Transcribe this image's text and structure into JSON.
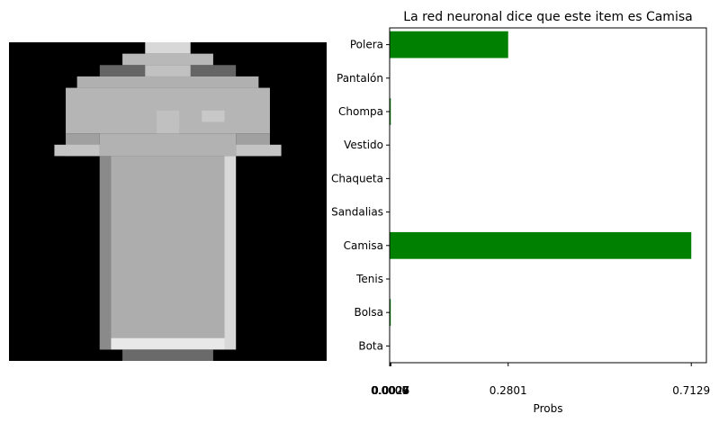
{
  "chart_data": {
    "type": "bar",
    "orientation": "horizontal",
    "title": "La red neuronal dice que este item es Camisa",
    "xlabel": "Probs",
    "ylabel": "",
    "categories": [
      "Polera",
      "Pantalón",
      "Chompa",
      "Vestido",
      "Chaqueta",
      "Sandalias",
      "Camisa",
      "Tenis",
      "Bolsa",
      "Bota"
    ],
    "values": [
      0.2801,
      0.0,
      0.0027,
      0.0009,
      0.0007,
      0.0,
      0.7129,
      0.0,
      0.0026,
      0.0
    ],
    "xticks": [
      "0.0000",
      "0.0007",
      "0.0009",
      "0.0026",
      "0.0027",
      "0.2801",
      "0.7129"
    ],
    "xtick_values": [
      0.0,
      0.0007,
      0.0009,
      0.0026,
      0.0027,
      0.2801,
      0.7129
    ],
    "xlim": [
      0,
      0.7486
    ],
    "bar_color": "#008000",
    "grid": false,
    "legend": "none"
  },
  "thumbnail": {
    "description_icon": "shirt-grayscale-image"
  }
}
